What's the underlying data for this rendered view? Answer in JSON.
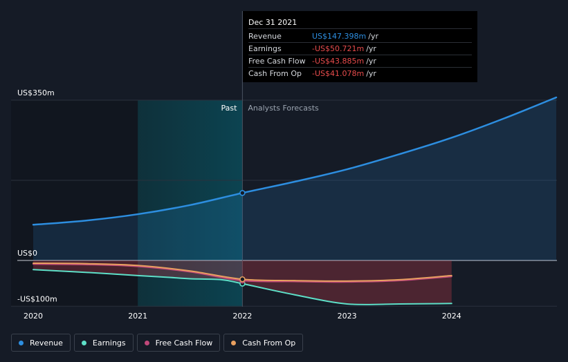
{
  "chart_data": {
    "type": "area",
    "title": "",
    "xlabel": "",
    "ylabel": "",
    "x_ticks": [
      {
        "label": "2020",
        "year": 2020
      },
      {
        "label": "2021",
        "year": 2021
      },
      {
        "label": "2022",
        "year": 2022
      },
      {
        "label": "2023",
        "year": 2023
      },
      {
        "label": "2024",
        "year": 2024
      }
    ],
    "y_labels": [
      {
        "label": "US$350m",
        "value": 350
      },
      {
        "label": "US$0",
        "value": 0
      },
      {
        "label": "-US$100m",
        "value": -100
      }
    ],
    "ylim": [
      -100,
      350
    ],
    "xlim": [
      2020,
      2025
    ],
    "past_label": "Past",
    "forecast_label": "Analysts Forecasts",
    "divider_x": 2022,
    "highlight_start": 2021,
    "series": [
      {
        "name": "Revenue",
        "color": "#2d8ee0",
        "points": [
          [
            2020,
            78
          ],
          [
            2020.5,
            87
          ],
          [
            2021,
            101
          ],
          [
            2021.5,
            121
          ],
          [
            2022,
            147.4
          ],
          [
            2022.5,
            172
          ],
          [
            2023,
            199
          ],
          [
            2023.5,
            232
          ],
          [
            2024,
            268
          ],
          [
            2024.5,
            310
          ],
          [
            2025,
            356
          ]
        ]
      },
      {
        "name": "Earnings",
        "color": "#5ee0c8",
        "points": [
          [
            2020,
            -20
          ],
          [
            2020.5,
            -26
          ],
          [
            2021,
            -33
          ],
          [
            2021.3,
            -37
          ],
          [
            2021.5,
            -40
          ],
          [
            2021.8,
            -42
          ],
          [
            2022,
            -50.7
          ],
          [
            2022.5,
            -75
          ],
          [
            2023,
            -95
          ],
          [
            2023.5,
            -95
          ],
          [
            2024,
            -94
          ]
        ]
      },
      {
        "name": "Free Cash Flow",
        "color": "#c0487a",
        "points": [
          [
            2020,
            -8
          ],
          [
            2020.5,
            -9
          ],
          [
            2021,
            -13
          ],
          [
            2021.5,
            -25
          ],
          [
            2022,
            -43.9
          ],
          [
            2022.5,
            -46
          ],
          [
            2023,
            -47
          ],
          [
            2023.5,
            -44
          ],
          [
            2024,
            -35
          ]
        ]
      },
      {
        "name": "Cash From Op",
        "color": "#e8a060",
        "points": [
          [
            2020,
            -6
          ],
          [
            2020.5,
            -7
          ],
          [
            2021,
            -11
          ],
          [
            2021.5,
            -23
          ],
          [
            2022,
            -41.1
          ],
          [
            2022.5,
            -44
          ],
          [
            2023,
            -45
          ],
          [
            2023.5,
            -42
          ],
          [
            2024,
            -33
          ]
        ]
      }
    ]
  },
  "tooltip": {
    "date": "Dec 31 2021",
    "rows": [
      {
        "name": "Revenue",
        "value": "US$147.398m",
        "unit": "/yr",
        "color": "#2d8ee0"
      },
      {
        "name": "Earnings",
        "value": "-US$50.721m",
        "unit": "/yr",
        "color": "#e84c4c"
      },
      {
        "name": "Free Cash Flow",
        "value": "-US$43.885m",
        "unit": "/yr",
        "color": "#e84c4c"
      },
      {
        "name": "Cash From Op",
        "value": "-US$41.078m",
        "unit": "/yr",
        "color": "#e84c4c"
      }
    ]
  },
  "legend": [
    {
      "label": "Revenue",
      "color": "#2d8ee0"
    },
    {
      "label": "Earnings",
      "color": "#5ee0c8"
    },
    {
      "label": "Free Cash Flow",
      "color": "#c0487a"
    },
    {
      "label": "Cash From Op",
      "color": "#e8a060"
    }
  ]
}
